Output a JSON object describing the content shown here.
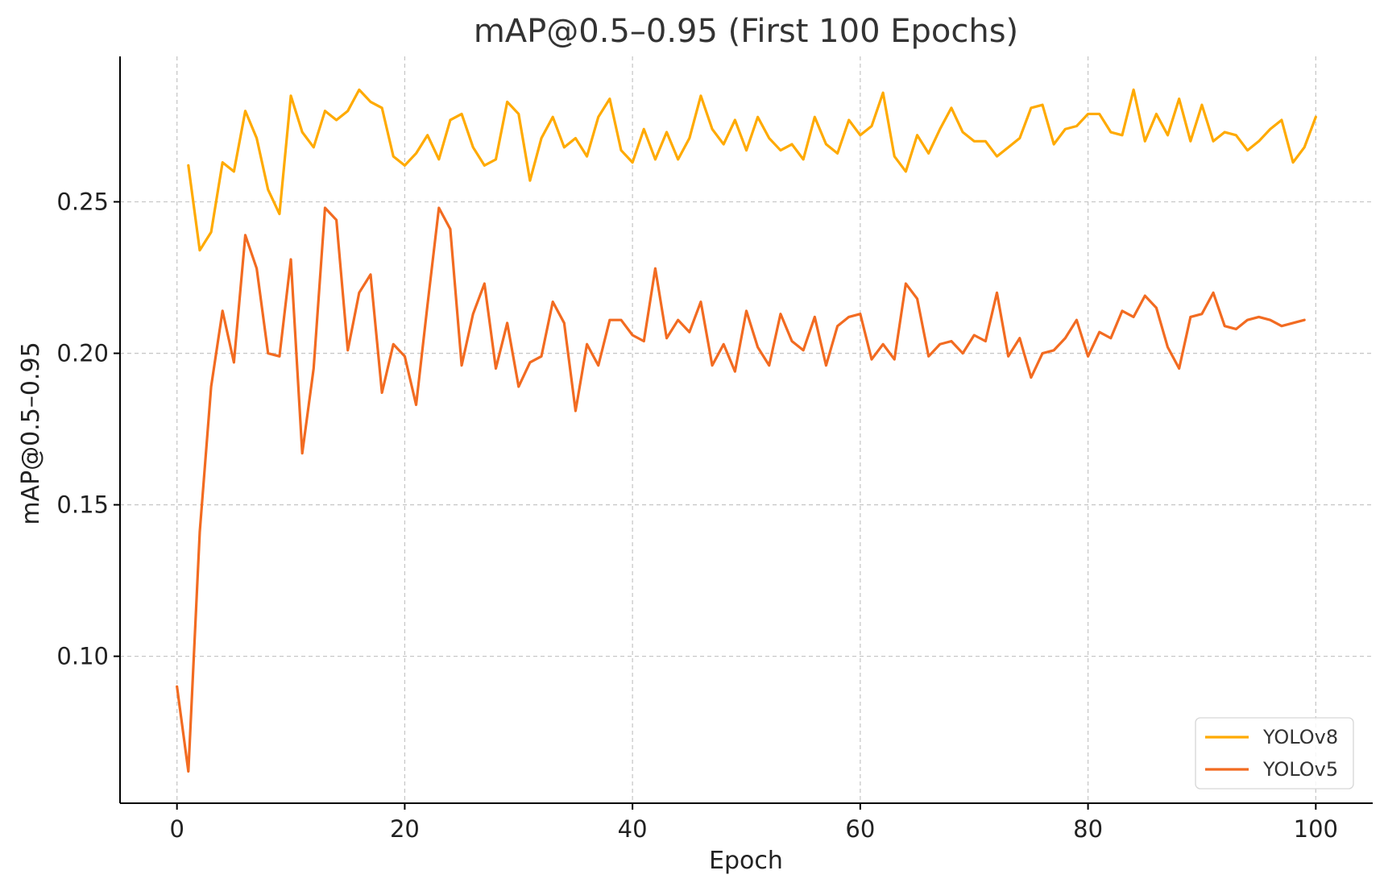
{
  "chart_data": {
    "type": "line",
    "title": "mAP@0.5–0.95 (First 100 Epochs)",
    "xlabel": "Epoch",
    "ylabel": "mAP@0.5–0.95",
    "xlim": [
      -5,
      105
    ],
    "ylim": [
      0.0515,
      0.298
    ],
    "xticks": [
      0,
      20,
      40,
      60,
      80,
      100
    ],
    "xtick_labels": [
      "0",
      "20",
      "40",
      "60",
      "80",
      "100"
    ],
    "yticks": [
      0.1,
      0.15,
      0.2,
      0.25
    ],
    "ytick_labels": [
      "0.10",
      "0.15",
      "0.20",
      "0.25"
    ],
    "grid": true,
    "legend": "lower-right",
    "series": [
      {
        "name": "YOLOv8",
        "color": "#FFAA00",
        "x": [
          1,
          2,
          3,
          4,
          5,
          6,
          7,
          8,
          9,
          10,
          11,
          12,
          13,
          14,
          15,
          16,
          17,
          18,
          19,
          20,
          21,
          22,
          23,
          24,
          25,
          26,
          27,
          28,
          29,
          30,
          31,
          32,
          33,
          34,
          35,
          36,
          37,
          38,
          39,
          40,
          41,
          42,
          43,
          44,
          45,
          46,
          47,
          48,
          49,
          50,
          51,
          52,
          53,
          54,
          55,
          56,
          57,
          58,
          59,
          60,
          61,
          62,
          63,
          64,
          65,
          66,
          67,
          68,
          69,
          70,
          71,
          72,
          73,
          74,
          75,
          76,
          77,
          78,
          79,
          80,
          81,
          82,
          83,
          84,
          85,
          86,
          87,
          88,
          89,
          90,
          91,
          92,
          93,
          94,
          95,
          96,
          97,
          98,
          99,
          100
        ],
        "values": [
          0.262,
          0.234,
          0.24,
          0.263,
          0.26,
          0.28,
          0.271,
          0.254,
          0.246,
          0.285,
          0.273,
          0.268,
          0.28,
          0.277,
          0.28,
          0.287,
          0.283,
          0.281,
          0.265,
          0.262,
          0.266,
          0.272,
          0.264,
          0.277,
          0.279,
          0.268,
          0.262,
          0.264,
          0.283,
          0.279,
          0.257,
          0.271,
          0.278,
          0.268,
          0.271,
          0.265,
          0.278,
          0.284,
          0.267,
          0.263,
          0.274,
          0.264,
          0.273,
          0.264,
          0.271,
          0.285,
          0.274,
          0.269,
          0.277,
          0.267,
          0.278,
          0.271,
          0.267,
          0.269,
          0.264,
          0.278,
          0.269,
          0.266,
          0.277,
          0.272,
          0.275,
          0.286,
          0.265,
          0.26,
          0.272,
          0.266,
          0.274,
          0.281,
          0.273,
          0.27,
          0.27,
          0.265,
          0.268,
          0.271,
          0.281,
          0.282,
          0.269,
          0.274,
          0.275,
          0.279,
          0.279,
          0.273,
          0.272,
          0.287,
          0.27,
          0.279,
          0.272,
          0.284,
          0.27,
          0.282,
          0.27,
          0.273,
          0.272,
          0.267,
          0.27,
          0.274,
          0.277,
          0.263,
          0.268,
          0.278
        ]
      },
      {
        "name": "YOLOv5",
        "color": "#F26B21",
        "x": [
          0,
          1,
          2,
          3,
          4,
          5,
          6,
          7,
          8,
          9,
          10,
          11,
          12,
          13,
          14,
          15,
          16,
          17,
          18,
          19,
          20,
          21,
          22,
          23,
          24,
          25,
          26,
          27,
          28,
          29,
          30,
          31,
          32,
          33,
          34,
          35,
          36,
          37,
          38,
          39,
          40,
          41,
          42,
          43,
          44,
          45,
          46,
          47,
          48,
          49,
          50,
          51,
          52,
          53,
          54,
          55,
          56,
          57,
          58,
          59,
          60,
          61,
          62,
          63,
          64,
          65,
          66,
          67,
          68,
          69,
          70,
          71,
          72,
          73,
          74,
          75,
          76,
          77,
          78,
          79,
          80,
          81,
          82,
          83,
          84,
          85,
          86,
          87,
          88,
          89,
          90,
          91,
          92,
          93,
          94,
          95,
          96,
          97,
          98,
          99
        ],
        "values": [
          0.09,
          0.062,
          0.141,
          0.189,
          0.214,
          0.197,
          0.239,
          0.228,
          0.2,
          0.199,
          0.231,
          0.167,
          0.195,
          0.248,
          0.244,
          0.201,
          0.22,
          0.226,
          0.187,
          0.203,
          0.199,
          0.183,
          0.216,
          0.248,
          0.241,
          0.196,
          0.213,
          0.223,
          0.195,
          0.21,
          0.189,
          0.197,
          0.199,
          0.217,
          0.21,
          0.181,
          0.203,
          0.196,
          0.211,
          0.211,
          0.206,
          0.204,
          0.228,
          0.205,
          0.211,
          0.207,
          0.217,
          0.196,
          0.203,
          0.194,
          0.214,
          0.202,
          0.196,
          0.213,
          0.204,
          0.201,
          0.212,
          0.196,
          0.209,
          0.212,
          0.213,
          0.198,
          0.203,
          0.198,
          0.223,
          0.218,
          0.199,
          0.203,
          0.204,
          0.2,
          0.206,
          0.204,
          0.22,
          0.199,
          0.205,
          0.192,
          0.2,
          0.201,
          0.205,
          0.211,
          0.199,
          0.207,
          0.205,
          0.214,
          0.212,
          0.219,
          0.215,
          0.202,
          0.195,
          0.212,
          0.213,
          0.22,
          0.209,
          0.208,
          0.211,
          0.212,
          0.211,
          0.209,
          0.21,
          0.211
        ]
      }
    ]
  }
}
